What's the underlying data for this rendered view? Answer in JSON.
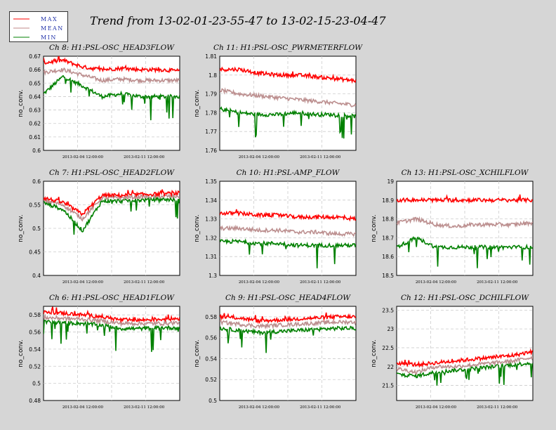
{
  "figure": {
    "title": "Trend from 13-02-01-23-55-47 to 13-02-15-23-04-47",
    "legend": [
      {
        "label": "MAX",
        "color": "#ff0000"
      },
      {
        "label": "MEAN",
        "color": "#c08a8a"
      },
      {
        "label": "MIN",
        "color": "#008000"
      }
    ],
    "colors": {
      "max": "#ff0000",
      "mean": "#bc8f8f",
      "min": "#008000",
      "background": "#d6d6d6"
    }
  },
  "chart_data": [
    {
      "title": "Ch 8: H1:PSL-OSC_HEAD3FLOW",
      "type": "line",
      "ylabel": "no_conv.",
      "ylim": [
        0.6,
        0.67
      ],
      "yticks": [
        "0.6",
        "0.61",
        "0.62",
        "0.63",
        "0.64",
        "0.65",
        "0.66",
        "0.67"
      ],
      "xticks": [
        "2013-02-04 12:00:00",
        "2013-02-11 12:00:00"
      ],
      "series": [
        {
          "name": "MAX",
          "values": [
            0.665,
            0.667,
            0.662,
            0.66,
            0.661,
            0.66,
            0.66,
            0.659
          ]
        },
        {
          "name": "MEAN",
          "values": [
            0.658,
            0.66,
            0.656,
            0.652,
            0.653,
            0.652,
            0.652,
            0.652
          ]
        },
        {
          "name": "MIN",
          "values": [
            0.642,
            0.655,
            0.648,
            0.64,
            0.642,
            0.64,
            0.64,
            0.64
          ]
        }
      ]
    },
    {
      "title": "Ch 11: H1:PSL-OSC_PWRMETERFLOW",
      "type": "line",
      "ylabel": "no_conv.",
      "ylim": [
        1.76,
        1.81
      ],
      "yticks": [
        "1.76",
        "1.77",
        "1.78",
        "1.79",
        "1.8",
        "1.81"
      ],
      "xticks": [
        "2013-02-04 12:00:00",
        "2013-02-11 12:00:00"
      ],
      "series": [
        {
          "name": "MAX",
          "values": [
            1.803,
            1.803,
            1.801,
            1.8,
            1.8,
            1.799,
            1.798,
            1.797
          ]
        },
        {
          "name": "MEAN",
          "values": [
            1.792,
            1.79,
            1.789,
            1.788,
            1.787,
            1.786,
            1.785,
            1.784
          ]
        },
        {
          "name": "MIN",
          "values": [
            1.782,
            1.78,
            1.779,
            1.779,
            1.78,
            1.779,
            1.779,
            1.778
          ]
        }
      ]
    },
    {
      "title": "Ch 7: H1:PSL-OSC_HEAD2FLOW",
      "type": "line",
      "ylabel": "no_conv.",
      "ylim": [
        0.4,
        0.6
      ],
      "yticks": [
        "0.4",
        "0.45",
        "0.5",
        "0.55",
        "0.6"
      ],
      "xticks": [
        "2013-02-04 12:00:00",
        "2013-02-11 12:00:00"
      ],
      "series": [
        {
          "name": "MAX",
          "values": [
            0.565,
            0.555,
            0.53,
            0.57,
            0.57,
            0.572,
            0.573,
            0.575
          ]
        },
        {
          "name": "MEAN",
          "values": [
            0.56,
            0.55,
            0.52,
            0.565,
            0.565,
            0.567,
            0.568,
            0.568
          ]
        },
        {
          "name": "MIN",
          "values": [
            0.555,
            0.54,
            0.495,
            0.558,
            0.558,
            0.56,
            0.562,
            0.56
          ]
        }
      ]
    },
    {
      "title": "Ch 10: H1:PSL-AMP_FLOW",
      "type": "line",
      "ylabel": "no_conv.",
      "ylim": [
        1.3,
        1.35
      ],
      "yticks": [
        "1.3",
        "1.31",
        "1.32",
        "1.33",
        "1.34",
        "1.35"
      ],
      "xticks": [
        "2013-02-04 12:00:00",
        "2013-02-11 12:00:00"
      ],
      "series": [
        {
          "name": "MAX",
          "values": [
            1.333,
            1.333,
            1.332,
            1.332,
            1.331,
            1.331,
            1.331,
            1.33
          ]
        },
        {
          "name": "MEAN",
          "values": [
            1.325,
            1.325,
            1.324,
            1.324,
            1.323,
            1.323,
            1.322,
            1.322
          ]
        },
        {
          "name": "MIN",
          "values": [
            1.318,
            1.318,
            1.317,
            1.317,
            1.316,
            1.316,
            1.316,
            1.316
          ]
        }
      ]
    },
    {
      "title": "Ch 13: H1:PSL-OSC_XCHILFLOW",
      "type": "line",
      "ylabel": "no_conv.",
      "ylim": [
        18.5,
        19
      ],
      "yticks": [
        "18.5",
        "18.6",
        "18.7",
        "18.8",
        "18.9",
        "19"
      ],
      "xticks": [
        "2013-02-04 12:00:00",
        "2013-02-11 12:00:00"
      ],
      "series": [
        {
          "name": "MAX",
          "values": [
            18.9,
            18.9,
            18.9,
            18.9,
            18.9,
            18.9,
            18.9,
            18.9
          ]
        },
        {
          "name": "MEAN",
          "values": [
            18.78,
            18.8,
            18.77,
            18.76,
            18.77,
            18.77,
            18.77,
            18.78
          ]
        },
        {
          "name": "MIN",
          "values": [
            18.65,
            18.7,
            18.65,
            18.65,
            18.65,
            18.65,
            18.65,
            18.65
          ]
        }
      ]
    },
    {
      "title": "Ch 6: H1:PSL-OSC_HEAD1FLOW",
      "type": "line",
      "ylabel": "no_conv.",
      "ylim": [
        0.48,
        0.59
      ],
      "yticks": [
        "0.48",
        "0.5",
        "0.52",
        "0.54",
        "0.56",
        "0.58"
      ],
      "xticks": [
        "2013-02-04 12:00:00",
        "2013-02-11 12:00:00"
      ],
      "series": [
        {
          "name": "MAX",
          "values": [
            0.583,
            0.582,
            0.58,
            0.578,
            0.574,
            0.574,
            0.575,
            0.576
          ]
        },
        {
          "name": "MEAN",
          "values": [
            0.577,
            0.576,
            0.575,
            0.573,
            0.57,
            0.57,
            0.57,
            0.571
          ]
        },
        {
          "name": "MIN",
          "values": [
            0.572,
            0.571,
            0.57,
            0.568,
            0.564,
            0.564,
            0.565,
            0.565
          ]
        }
      ]
    },
    {
      "title": "Ch 9: H1:PSL-OSC_HEAD4FLOW",
      "type": "line",
      "ylabel": "no_conv.",
      "ylim": [
        0.5,
        0.59
      ],
      "yticks": [
        "0.5",
        "0.52",
        "0.54",
        "0.56",
        "0.58"
      ],
      "xticks": [
        "2013-02-04 12:00:00",
        "2013-02-11 12:00:00"
      ],
      "series": [
        {
          "name": "MAX",
          "values": [
            0.58,
            0.579,
            0.576,
            0.577,
            0.578,
            0.579,
            0.58,
            0.58
          ]
        },
        {
          "name": "MEAN",
          "values": [
            0.575,
            0.573,
            0.571,
            0.572,
            0.573,
            0.574,
            0.575,
            0.575
          ]
        },
        {
          "name": "MIN",
          "values": [
            0.569,
            0.567,
            0.565,
            0.566,
            0.567,
            0.568,
            0.569,
            0.569
          ]
        }
      ]
    },
    {
      "title": "Ch 12: H1:PSL-OSC_DCHILFLOW",
      "type": "line",
      "ylabel": "no_conv.",
      "ylim": [
        21.1,
        23.6
      ],
      "yticks": [
        "21.5",
        "22",
        "22.5",
        "23",
        "23.5"
      ],
      "xticks": [
        "2013-02-04 12:00:00",
        "2013-02-11 12:00:00"
      ],
      "series": [
        {
          "name": "MAX",
          "values": [
            22.1,
            22.05,
            22.1,
            22.15,
            22.2,
            22.25,
            22.3,
            22.4
          ]
        },
        {
          "name": "MEAN",
          "values": [
            21.95,
            21.85,
            22.0,
            22.0,
            22.05,
            22.1,
            22.15,
            22.25
          ]
        },
        {
          "name": "MIN",
          "values": [
            21.8,
            21.75,
            21.85,
            21.9,
            21.95,
            22.0,
            22.05,
            22.1
          ]
        }
      ]
    }
  ]
}
